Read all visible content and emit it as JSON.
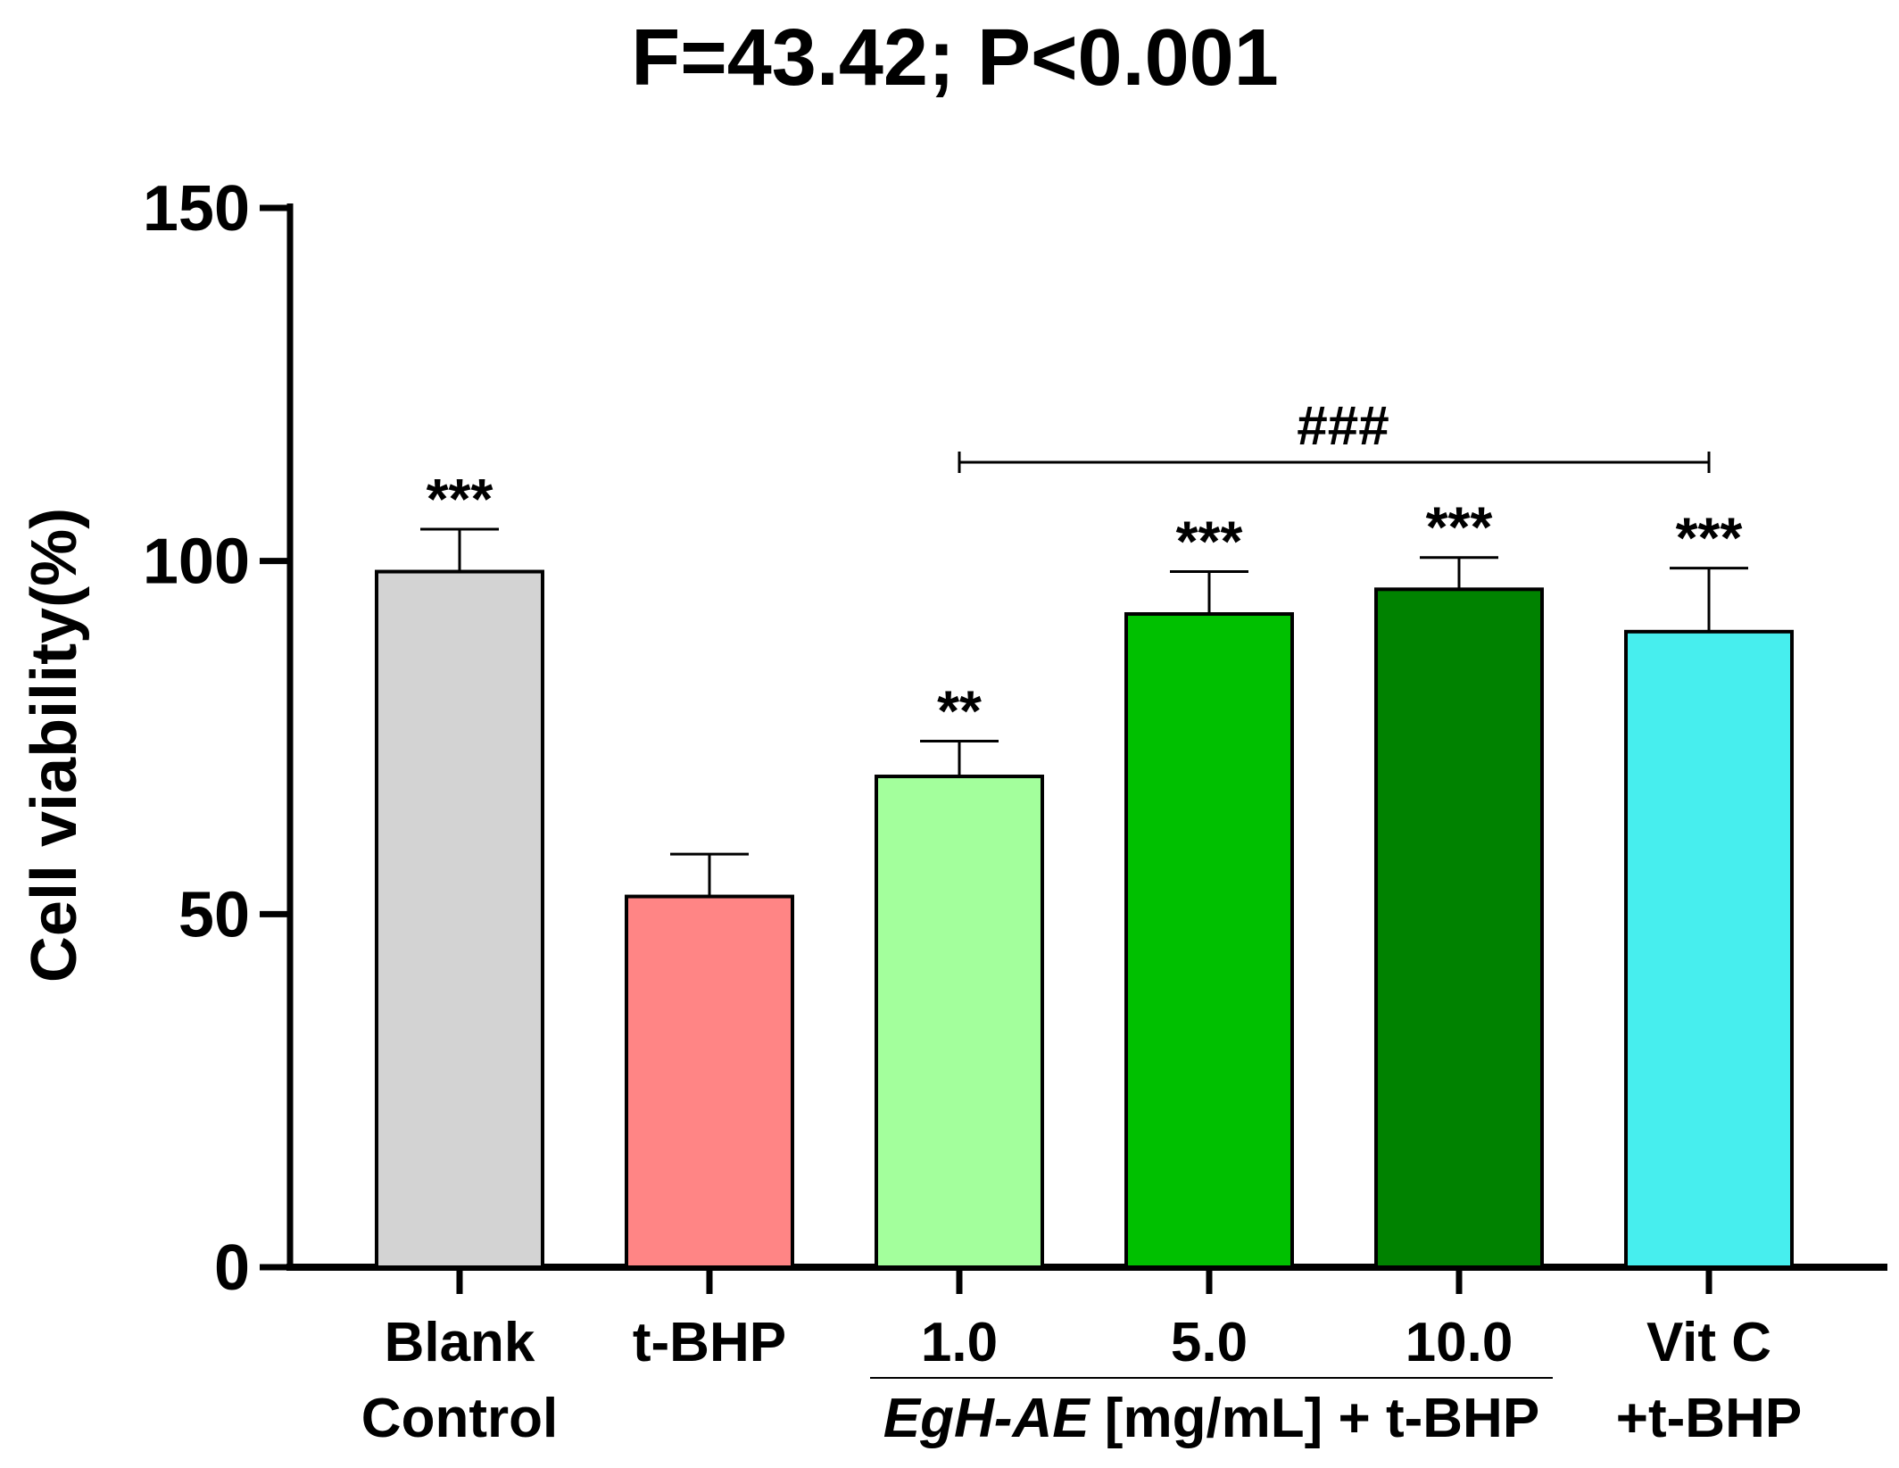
{
  "chart_data": {
    "type": "bar",
    "title": "F=43.42; P<0.001",
    "ylabel": "Cell viability(%)",
    "xlabel": "",
    "ylim": [
      0,
      150
    ],
    "yticks": [
      "0",
      "50",
      "100",
      "150"
    ],
    "categories": [
      "Blank Control",
      "t-BHP",
      "1.0",
      "5.0",
      "10.0",
      "Vit C +t-BHP"
    ],
    "category_lines": [
      [
        "Blank",
        "Control"
      ],
      [
        "t-BHP",
        ""
      ],
      [
        "1.0",
        ""
      ],
      [
        "5.0",
        ""
      ],
      [
        "10.0",
        ""
      ],
      [
        "Vit C",
        "+t-BHP"
      ]
    ],
    "values": [
      98.5,
      52.5,
      69.5,
      92.5,
      96.0,
      90.0
    ],
    "errors": [
      6.0,
      6.0,
      5.0,
      6.0,
      4.5,
      9.0
    ],
    "significance": [
      "***",
      "",
      "**",
      "***",
      "***",
      "***"
    ],
    "colors": [
      "#d3d3d3",
      "#ff8585",
      "#a3ff9c",
      "#00c000",
      "#008200",
      "#47eeee"
    ],
    "bracket": {
      "from_index": 2,
      "to_index": 5,
      "label": "###"
    },
    "group_label": {
      "italic": "EgH-AE",
      "rest": " [mg/mL] + t-BHP",
      "from_index": 2,
      "to_index": 4
    },
    "grid": false,
    "legend": "none"
  }
}
